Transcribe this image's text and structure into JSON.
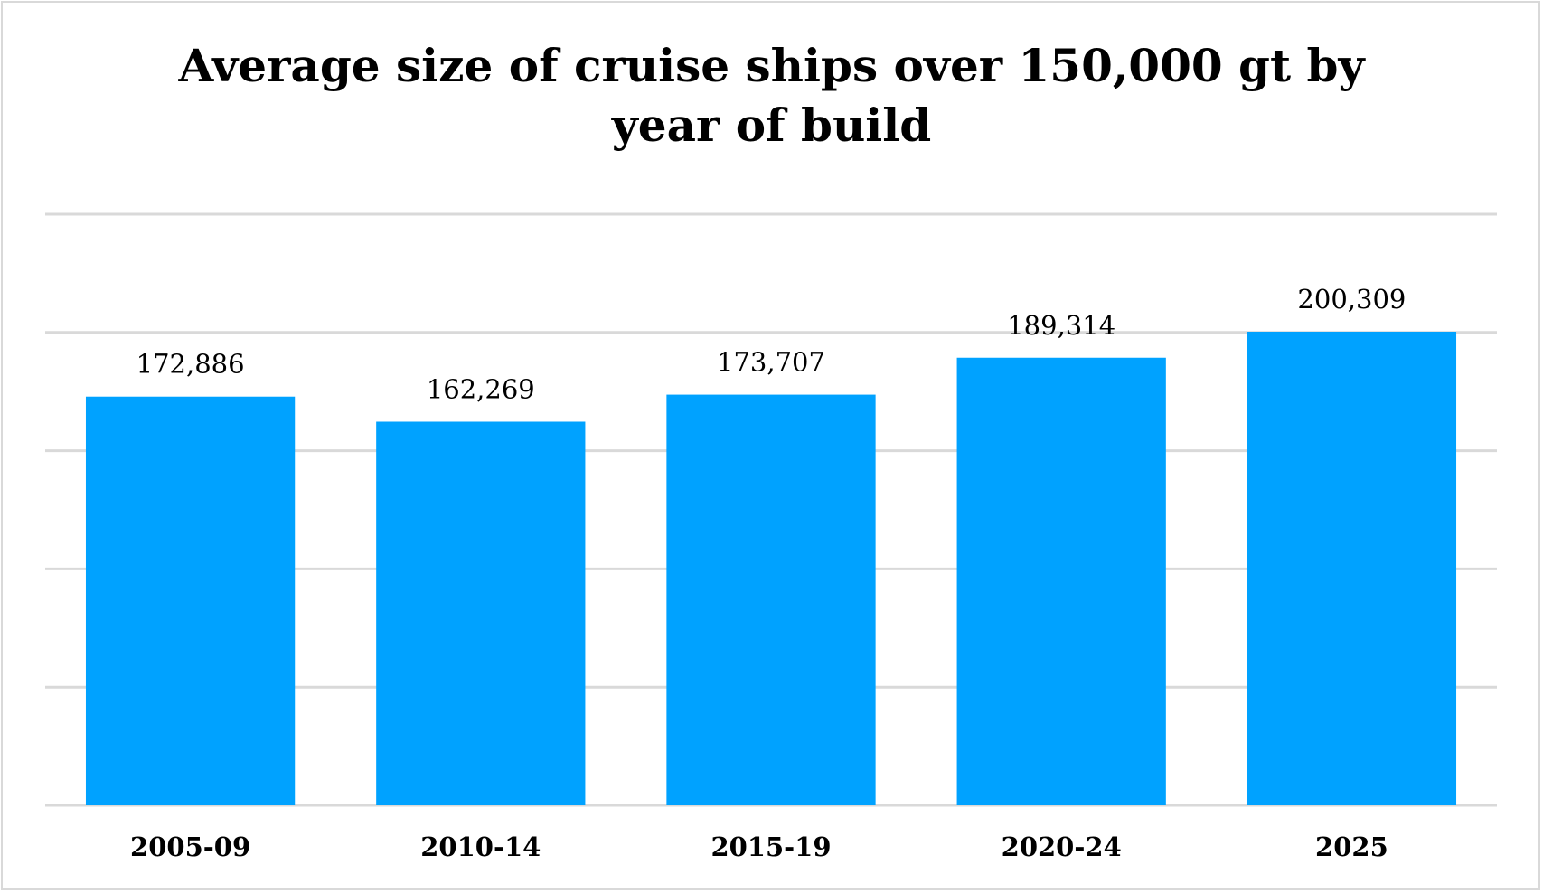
{
  "chart_data": {
    "type": "bar",
    "title_lines": [
      "Average size of cruise ships over 150,000 gt by",
      "year of build"
    ],
    "categories": [
      "2005-09",
      "2010-14",
      "2015-19",
      "2020-24",
      "2025"
    ],
    "values": [
      172886,
      162269,
      173707,
      189314,
      200309
    ],
    "value_labels": [
      "172,886",
      "162,269",
      "173,707",
      "189,314",
      "200,309"
    ],
    "xlabel": "",
    "ylabel": "",
    "ylim": [
      0,
      250000
    ],
    "grid": true,
    "gridline_step": 50000,
    "legend": "none",
    "colors": {
      "bar": "#00a2ff",
      "grid": "#d9d9d9",
      "text": "#000000"
    }
  }
}
